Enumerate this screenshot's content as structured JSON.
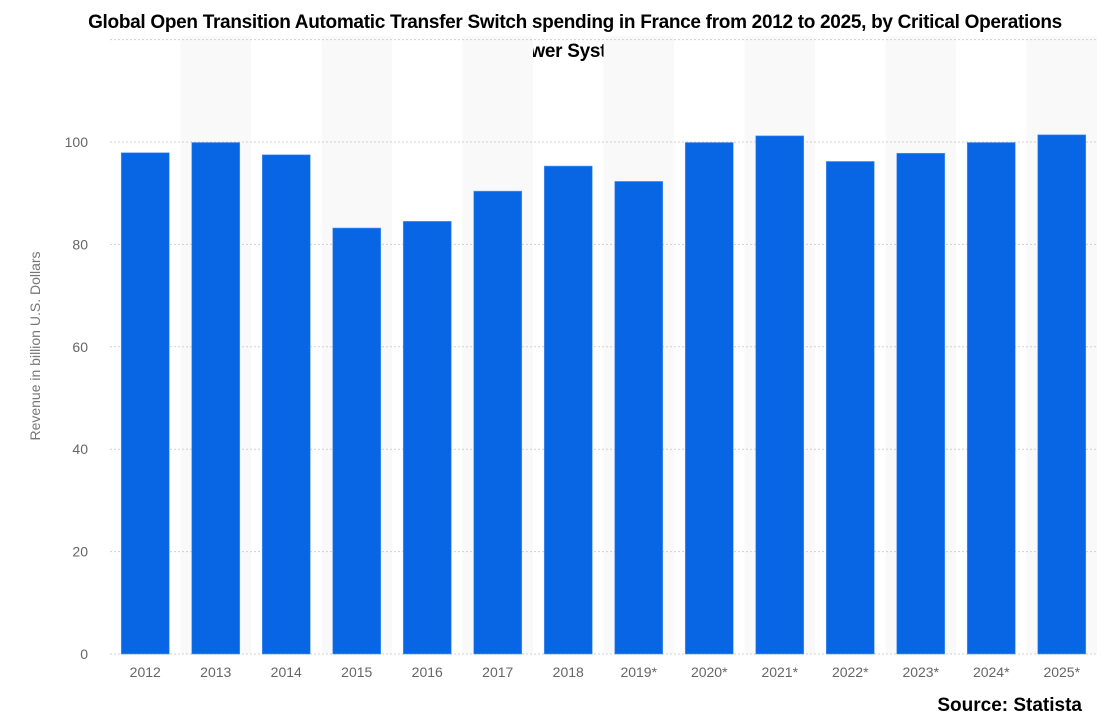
{
  "chart_data": {
    "type": "bar",
    "title": "Global Open Transition Automatic Transfer Switch spending in France from 2012 to 2025, by Critical Operations Power Systems",
    "ylabel": "Revenue in billion U.S. Dollars",
    "xlabel": "",
    "categories": [
      "2012",
      "2013",
      "2014",
      "2015",
      "2016",
      "2017",
      "2018",
      "2019*",
      "2020*",
      "2021*",
      "2022*",
      "2023*",
      "2024*",
      "2025*"
    ],
    "values": [
      97.9,
      99.9,
      97.5,
      83.2,
      84.5,
      90.4,
      95.3,
      92.3,
      99.9,
      101.2,
      96.2,
      97.8,
      99.9,
      101.4
    ],
    "ylim": [
      0,
      120
    ],
    "yticks": [
      0,
      20,
      40,
      60,
      80,
      100
    ],
    "grid": true,
    "bar_color": "#0866e4",
    "source": "Source: Statista"
  }
}
